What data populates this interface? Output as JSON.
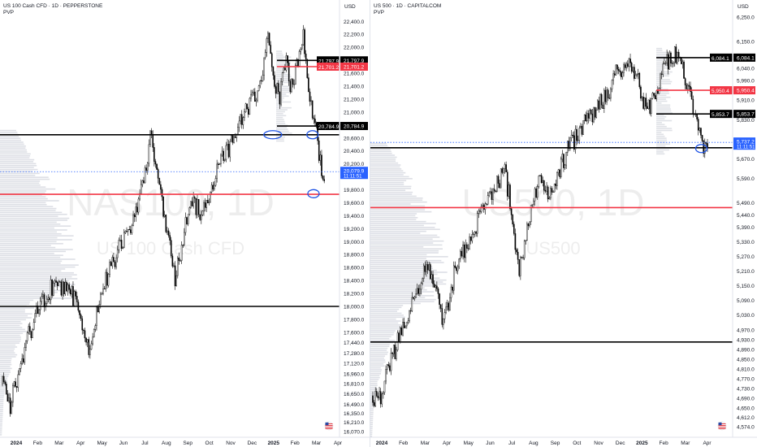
{
  "chart_data": [
    {
      "type": "candlestick",
      "title": "US 100 Cash CFD · 1D · PEPPERSTONE",
      "subtitle": "PVP",
      "currency": "USD",
      "watermark_symbol": "NAS100, 1D",
      "watermark_name": "US 100 Cash CFD",
      "x_ticks": [
        "2024",
        "Feb",
        "Mar",
        "Apr",
        "May",
        "Jun",
        "Jul",
        "Aug",
        "Sep",
        "Oct",
        "Nov",
        "Dec",
        "2025",
        "Feb",
        "Mar",
        "Apr"
      ],
      "y_ticks": [
        22400,
        22200,
        22000,
        21800,
        21600,
        21400,
        21200,
        21000,
        20800,
        20600,
        20400,
        20200,
        19800,
        19600,
        19400,
        19200,
        19000,
        18800,
        18600,
        18400,
        18200,
        18000,
        17800,
        17600,
        17440,
        17280,
        17120,
        16960,
        16810,
        16650,
        16490,
        16350,
        16210,
        16070
      ],
      "y_tick_labels": [
        "22,400.0",
        "22,200.0",
        "22,000.0",
        "21,800.0",
        "21,600.0",
        "21,400.0",
        "21,200.0",
        "21,000.0",
        "20,800.0",
        "20,600.0",
        "20,400.0",
        "20,200.0",
        "19,800.0",
        "19,600.0",
        "19,400.0",
        "19,200.0",
        "19,000.0",
        "18,800.0",
        "18,600.0",
        "18,400.0",
        "18,200.0",
        "18,000.0",
        "17,800.0",
        "17,600.0",
        "17,440.0",
        "17,280.0",
        "17,120.0",
        "16,960.0",
        "16,810.0",
        "16,650.0",
        "16,490.0",
        "16,350.0",
        "16,210.0",
        "16,070.0"
      ],
      "ylim": [
        15980,
        22730
      ],
      "price_path": [
        {
          "x": 0,
          "y": 16800
        },
        {
          "x": 0.022,
          "y": 16450
        },
        {
          "x": 0.05,
          "y": 17000
        },
        {
          "x": 0.08,
          "y": 17550
        },
        {
          "x": 0.11,
          "y": 17950
        },
        {
          "x": 0.16,
          "y": 18350
        },
        {
          "x": 0.2,
          "y": 18250
        },
        {
          "x": 0.235,
          "y": 18000
        },
        {
          "x": 0.265,
          "y": 17300
        },
        {
          "x": 0.29,
          "y": 17900
        },
        {
          "x": 0.33,
          "y": 18600
        },
        {
          "x": 0.37,
          "y": 19000
        },
        {
          "x": 0.4,
          "y": 19300
        },
        {
          "x": 0.43,
          "y": 19900
        },
        {
          "x": 0.455,
          "y": 20600
        },
        {
          "x": 0.475,
          "y": 20100
        },
        {
          "x": 0.5,
          "y": 19300
        },
        {
          "x": 0.53,
          "y": 18400
        },
        {
          "x": 0.55,
          "y": 18900
        },
        {
          "x": 0.58,
          "y": 19700
        },
        {
          "x": 0.61,
          "y": 19400
        },
        {
          "x": 0.64,
          "y": 19800
        },
        {
          "x": 0.67,
          "y": 20200
        },
        {
          "x": 0.7,
          "y": 20500
        },
        {
          "x": 0.73,
          "y": 20900
        },
        {
          "x": 0.76,
          "y": 21100
        },
        {
          "x": 0.78,
          "y": 21300
        },
        {
          "x": 0.8,
          "y": 21700
        },
        {
          "x": 0.815,
          "y": 22100
        },
        {
          "x": 0.83,
          "y": 21500
        },
        {
          "x": 0.85,
          "y": 21200
        },
        {
          "x": 0.87,
          "y": 21800
        },
        {
          "x": 0.89,
          "y": 21300
        },
        {
          "x": 0.91,
          "y": 21900
        },
        {
          "x": 0.925,
          "y": 22150
        },
        {
          "x": 0.94,
          "y": 21400
        },
        {
          "x": 0.96,
          "y": 20800
        },
        {
          "x": 0.975,
          "y": 20300
        },
        {
          "x": 0.988,
          "y": 19950
        }
      ],
      "levels": [
        {
          "value": 21797.9,
          "label": "21,797.9",
          "color": "#000000"
        },
        {
          "value": 21701.2,
          "label": "21,701.2",
          "color": "#f23645"
        },
        {
          "value": 20784.9,
          "label": "20,784.9",
          "color": "#000000"
        },
        {
          "value": 20650,
          "color": "#000000"
        },
        {
          "value": 19730,
          "color": "#f23645"
        },
        {
          "value": 18000,
          "color": "#000000"
        }
      ],
      "current_price": {
        "value": 20079.9,
        "label": "20,079.9",
        "countdown": "11:11:51",
        "color": "#2962ff"
      },
      "annotations": [
        {
          "type": "ellipse",
          "x": 0.83,
          "y": 20650,
          "color": "#1e53e5"
        },
        {
          "type": "ellipse",
          "x": 0.952,
          "y": 20650,
          "color": "#1e53e5"
        },
        {
          "type": "ellipse",
          "x": 0.955,
          "y": 19740,
          "color": "#1e53e5"
        }
      ],
      "grid": false
    },
    {
      "type": "candlestick",
      "title": "US 500 · 1D · CAPITALCOM",
      "subtitle": "PVP",
      "currency": "USD",
      "watermark_symbol": "US500, 1D",
      "watermark_name": "US500",
      "x_ticks": [
        "2024",
        "Feb",
        "Mar",
        "Apr",
        "May",
        "Jun",
        "Jul",
        "Aug",
        "Sep",
        "Oct",
        "Nov",
        "Dec",
        "2025",
        "Feb",
        "Mar",
        "Apr"
      ],
      "y_ticks": [
        6250,
        6150,
        6040,
        5990,
        5910,
        5830,
        5750,
        5670,
        5590,
        5490,
        5440,
        5390,
        5330,
        5270,
        5210,
        5150,
        5090,
        5030,
        4970,
        4930,
        4890,
        4850,
        4810,
        4770,
        4730,
        4690,
        4650,
        4612,
        4574
      ],
      "y_tick_labels": [
        "6,250.0",
        "6,150.0",
        "6,040.0",
        "5,990.0",
        "5,910.0",
        "5,830.0",
        "5,750.0",
        "5,670.0",
        "5,590.0",
        "5,490.0",
        "5,440.0",
        "5,390.0",
        "5,330.0",
        "5,270.0",
        "5,210.0",
        "5,150.0",
        "5,090.0",
        "5,030.0",
        "4,970.0",
        "4,930.0",
        "4,890.0",
        "4,850.0",
        "4,810.0",
        "4,770.0",
        "4,730.0",
        "4,690.0",
        "4,650.0",
        "4,612.0",
        "4,574.0"
      ],
      "ylim": [
        4530,
        6320
      ],
      "price_path": [
        {
          "x": 0,
          "y": 4700
        },
        {
          "x": 0.02,
          "y": 4690
        },
        {
          "x": 0.05,
          "y": 4820
        },
        {
          "x": 0.08,
          "y": 4950
        },
        {
          "x": 0.12,
          "y": 5100
        },
        {
          "x": 0.16,
          "y": 5230
        },
        {
          "x": 0.19,
          "y": 5100
        },
        {
          "x": 0.21,
          "y": 4990
        },
        {
          "x": 0.24,
          "y": 5200
        },
        {
          "x": 0.28,
          "y": 5320
        },
        {
          "x": 0.32,
          "y": 5450
        },
        {
          "x": 0.36,
          "y": 5550
        },
        {
          "x": 0.39,
          "y": 5620
        },
        {
          "x": 0.41,
          "y": 5450
        },
        {
          "x": 0.43,
          "y": 5200
        },
        {
          "x": 0.46,
          "y": 5400
        },
        {
          "x": 0.49,
          "y": 5580
        },
        {
          "x": 0.52,
          "y": 5500
        },
        {
          "x": 0.55,
          "y": 5620
        },
        {
          "x": 0.58,
          "y": 5720
        },
        {
          "x": 0.61,
          "y": 5780
        },
        {
          "x": 0.64,
          "y": 5840
        },
        {
          "x": 0.67,
          "y": 5900
        },
        {
          "x": 0.7,
          "y": 5950
        },
        {
          "x": 0.72,
          "y": 6030
        },
        {
          "x": 0.75,
          "y": 6050
        },
        {
          "x": 0.78,
          "y": 6020
        },
        {
          "x": 0.8,
          "y": 5900
        },
        {
          "x": 0.82,
          "y": 5880
        },
        {
          "x": 0.85,
          "y": 6000
        },
        {
          "x": 0.88,
          "y": 6100
        },
        {
          "x": 0.905,
          "y": 6080
        },
        {
          "x": 0.92,
          "y": 6000
        },
        {
          "x": 0.95,
          "y": 5850
        },
        {
          "x": 0.97,
          "y": 5740
        },
        {
          "x": 0.988,
          "y": 5700
        }
      ],
      "levels": [
        {
          "value": 6084.1,
          "label": "6,084.1",
          "color": "#000000"
        },
        {
          "value": 5950.4,
          "label": "5,950.4",
          "color": "#f23645"
        },
        {
          "value": 5853.7,
          "label": "5,853.7",
          "color": "#000000"
        },
        {
          "value": 5715,
          "color": "#000000"
        },
        {
          "value": 5470,
          "color": "#f23645"
        },
        {
          "value": 4920,
          "color": "#000000"
        }
      ],
      "current_price": {
        "value": 5737.2,
        "label": "5,737.2",
        "countdown": "11:11:51",
        "color": "#2962ff"
      },
      "annotations": [
        {
          "type": "ellipse",
          "x": 0.97,
          "y": 5712,
          "color": "#1e53e5"
        }
      ],
      "grid": false
    }
  ]
}
